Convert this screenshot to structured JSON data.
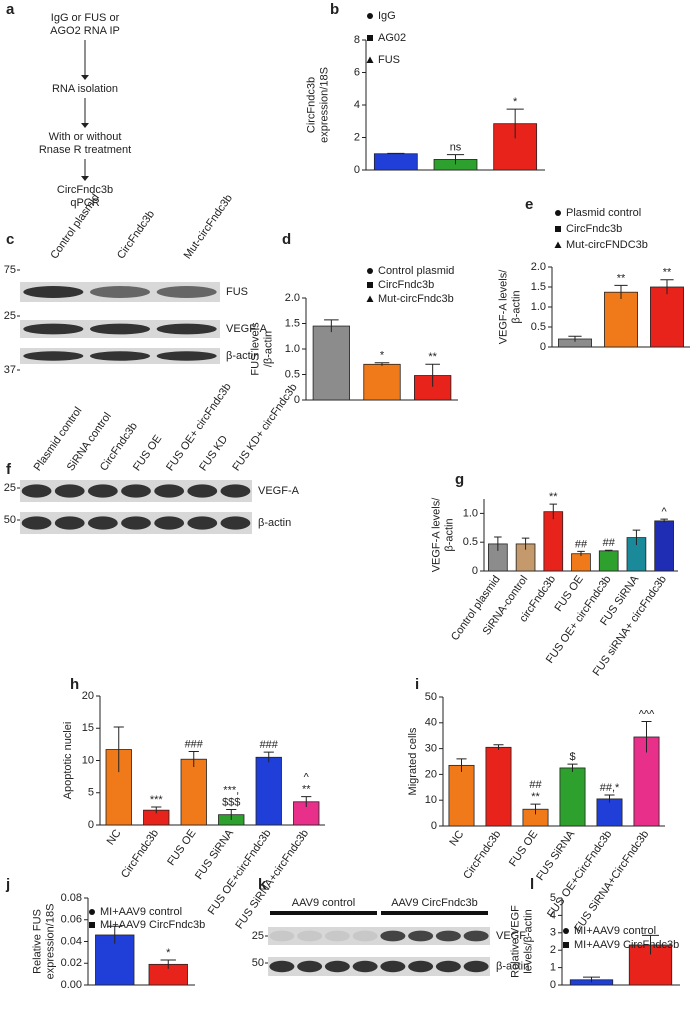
{
  "flowchart": {
    "panel": "a",
    "steps": [
      [
        "IgG or FUS or",
        "AGO2 RNA IP"
      ],
      [
        "RNA isolation"
      ],
      [
        "With or without",
        "Rnase R treatment"
      ],
      [
        "CircFndc3b",
        "qPCR"
      ]
    ]
  },
  "blots": [
    {
      "panel": "c",
      "lanes": [
        "Control plasmid",
        "CircFndc3b",
        "Mut-circFndc3b"
      ],
      "bands": [
        "FUS",
        "VEGF-A",
        "β-actin"
      ],
      "markers": [
        "75",
        "25",
        "37"
      ]
    },
    {
      "panel": "f",
      "lanes": [
        "Plasmid control",
        "SiRNA control",
        "CircFndc3b",
        "FUS OE",
        "FUS OE+ circFndc3b",
        "FUS KD",
        "FUS KD+ circFndc3b"
      ],
      "bands": [
        "VEGF-A",
        "β-actin"
      ],
      "markers": [
        "25",
        "50"
      ]
    },
    {
      "panel": "k",
      "groups": [
        "AAV9 control",
        "AAV9 CircFndc3b"
      ],
      "bands": [
        "VEGF",
        "β-actin"
      ],
      "markers": [
        "25",
        "50"
      ]
    }
  ],
  "chart_data": [
    {
      "type": "bar",
      "panel": "b",
      "ylabel": [
        "CircFndc3b",
        "expression/18S"
      ],
      "categories": [
        "IgG",
        "AG02",
        "FUS"
      ],
      "values": [
        1.0,
        0.65,
        2.85
      ],
      "errors": [
        0.02,
        0.3,
        0.9
      ],
      "colors": [
        "#1f3fd8",
        "#2ea02e",
        "#e8231b"
      ],
      "markers": [
        "circle",
        "square",
        "triangle"
      ],
      "legend": true,
      "ylim": [
        0,
        8
      ],
      "yticks": [
        0,
        2,
        4,
        6,
        8
      ],
      "annotations": [
        {
          "index": 1,
          "text": "ns"
        },
        {
          "index": 2,
          "text": "*"
        }
      ]
    },
    {
      "type": "bar",
      "panel": "d",
      "ylabel": [
        "FUS levels",
        "/β-actin"
      ],
      "categories": [
        "Control plasmid",
        "CircFndc3b",
        "Mut-circFndc3b"
      ],
      "values": [
        1.45,
        0.7,
        0.48
      ],
      "errors": [
        0.12,
        0.03,
        0.22
      ],
      "colors": [
        "#8c8c8c",
        "#f07a1a",
        "#e8231b"
      ],
      "markers": [
        "circle",
        "square",
        "triangle"
      ],
      "legend": true,
      "ylim": [
        0,
        2
      ],
      "yticks": [
        0,
        0.5,
        {
          "value": 1,
          "label": "1.0"
        },
        1.5,
        {
          "value": 2,
          "label": "2.0"
        }
      ],
      "annotations": [
        {
          "index": 1,
          "text": "*"
        },
        {
          "index": 2,
          "text": "**"
        }
      ]
    },
    {
      "type": "bar",
      "panel": "e",
      "ylabel": [
        "VEGF-A levels/",
        "β-actin"
      ],
      "categories": [
        "Plasmid control",
        "CircFndc3b",
        "Mut-circFNDC3b"
      ],
      "values": [
        0.2,
        1.37,
        1.5
      ],
      "errors": [
        0.07,
        0.17,
        0.18
      ],
      "colors": [
        "#8c8c8c",
        "#f07a1a",
        "#e8231b"
      ],
      "markers": [
        "circle",
        "square",
        "triangle"
      ],
      "legend": true,
      "ylim": [
        0,
        2
      ],
      "yticks": [
        0,
        0.5,
        {
          "value": 1,
          "label": "1.0"
        },
        1.5,
        {
          "value": 2,
          "label": "2.0"
        }
      ],
      "annotations": [
        {
          "index": 1,
          "text": "**"
        },
        {
          "index": 2,
          "text": "**"
        }
      ]
    },
    {
      "type": "bar",
      "panel": "g",
      "ylabel": [
        "VEGF-A levels/",
        "β-actin"
      ],
      "categories": [
        "Control plasmid",
        "SiRNA-control",
        "circFndc3b",
        "FUS OE",
        "FUS OE+ circFndc3b",
        "FUS SiRNA",
        "FUS siRNA+ circFndc3b"
      ],
      "values": [
        0.47,
        0.47,
        1.03,
        0.3,
        0.35,
        0.58,
        0.87
      ],
      "errors": [
        0.12,
        0.1,
        0.13,
        0.04,
        0.01,
        0.13,
        0.03
      ],
      "colors": [
        "#8c8c8c",
        "#c49a6c",
        "#e8231b",
        "#f07a1a",
        "#2ea02e",
        "#1a8a9a",
        "#1f2db4"
      ],
      "legend": false,
      "ylim": [
        0,
        1.25
      ],
      "yticks": [
        0,
        0.5,
        {
          "value": 1,
          "label": "1.0"
        }
      ],
      "annotations": [
        {
          "index": 2,
          "text": "**"
        },
        {
          "index": 3,
          "text": "##"
        },
        {
          "index": 4,
          "text": "##"
        },
        {
          "index": 6,
          "text": "^"
        }
      ]
    },
    {
      "type": "bar",
      "panel": "h",
      "ylabel": [
        "Apoptotic nuclei"
      ],
      "categories": [
        "NC",
        "CircFndc3b",
        "FUS OE",
        "FUS SiRNA",
        "FUS OE+circFndc3b",
        "FUS SiRNA+circFndc3b"
      ],
      "values": [
        11.7,
        2.3,
        10.2,
        1.6,
        10.5,
        3.6
      ],
      "errors": [
        3.5,
        0.5,
        1.2,
        0.8,
        0.8,
        0.8
      ],
      "colors": [
        "#f07a1a",
        "#e8231b",
        "#f07a1a",
        "#2ea02e",
        "#1f3fd8",
        "#e8308a"
      ],
      "legend": false,
      "ylim": [
        0,
        20
      ],
      "yticks": [
        0,
        5,
        10,
        15,
        20
      ],
      "annotations": [
        {
          "index": 1,
          "text": "***"
        },
        {
          "index": 2,
          "text": "###"
        },
        {
          "index": 3,
          "text": "$$$"
        },
        {
          "index": 3,
          "text": "***,"
        },
        {
          "index": 4,
          "text": "###"
        },
        {
          "index": 5,
          "text": "**"
        },
        {
          "index": 5,
          "text": "^"
        }
      ]
    },
    {
      "type": "bar",
      "panel": "i",
      "ylabel": [
        "Migrated cells"
      ],
      "categories": [
        "NC",
        "CircFndc3b",
        "FUS OE",
        "FUS SiRNA",
        "FUS OE+CircFndc3b",
        "FUS SiRNA+CircFndc3b"
      ],
      "values": [
        23.5,
        30.5,
        6.5,
        22.5,
        10.5,
        34.5
      ],
      "errors": [
        2.5,
        1,
        2,
        1.5,
        1.5,
        6
      ],
      "colors": [
        "#f07a1a",
        "#e8231b",
        "#f07a1a",
        "#2ea02e",
        "#1f3fd8",
        "#e8308a"
      ],
      "legend": false,
      "ylim": [
        0,
        50
      ],
      "yticks": [
        0,
        10,
        20,
        30,
        40,
        50
      ],
      "annotations": [
        {
          "index": 2,
          "text": "**"
        },
        {
          "index": 2,
          "text": "##"
        },
        {
          "index": 3,
          "text": "$"
        },
        {
          "index": 4,
          "text": "##,*"
        },
        {
          "index": 5,
          "text": "^^^"
        }
      ]
    },
    {
      "type": "bar",
      "panel": "j",
      "ylabel": [
        "Relative FUS",
        "expression/18S"
      ],
      "categories": [
        "MI+AAV9 control",
        "MI+AAV9 CircFndc3b"
      ],
      "values": [
        0.046,
        0.019
      ],
      "errors": [
        0.008,
        0.004
      ],
      "colors": [
        "#1f3fd8",
        "#e8231b"
      ],
      "markers": [
        "circle",
        "square"
      ],
      "legend": true,
      "ylim": [
        0,
        0.08
      ],
      "yticks": [
        {
          "value": 0,
          "label": "0.00"
        },
        {
          "value": 0.02,
          "label": "0.02"
        },
        {
          "value": 0.04,
          "label": "0.04"
        },
        {
          "value": 0.06,
          "label": "0.06"
        },
        {
          "value": 0.08,
          "label": "0.08"
        }
      ],
      "annotations": [
        {
          "index": 1,
          "text": "*"
        }
      ]
    },
    {
      "type": "bar",
      "panel": "l",
      "ylabel": [
        "Relative VEGF",
        "levels/β-actin"
      ],
      "categories": [
        "MI+AAV9 control",
        "MI+AAV9 CircFndc3b"
      ],
      "values": [
        0.3,
        2.3
      ],
      "errors": [
        0.15,
        0.55
      ],
      "colors": [
        "#1f3fd8",
        "#e8231b"
      ],
      "markers": [
        "circle",
        "square"
      ],
      "legend": true,
      "ylim": [
        0,
        5
      ],
      "yticks": [
        0,
        1,
        2,
        3,
        4,
        5
      ]
    }
  ]
}
